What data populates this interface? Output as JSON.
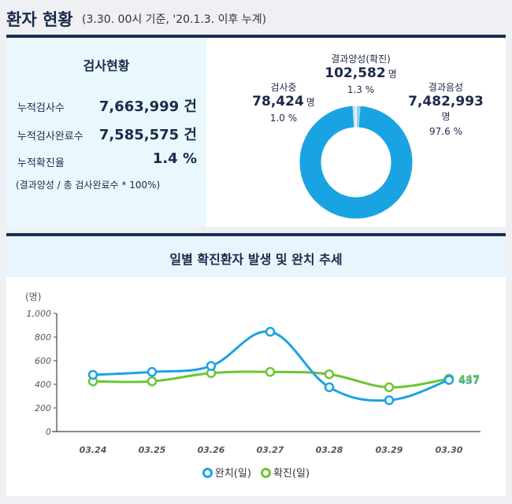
{
  "header": {
    "title": "환자 현황",
    "subtitle": "(3.30. 00시 기준, '20.1.3. 이후 누계)"
  },
  "summary": {
    "heading": "검사현황",
    "rows": [
      {
        "label": "누적검사수",
        "value": "7,663,999 건"
      },
      {
        "label": "누적검사완료수",
        "value": "7,585,575 건"
      },
      {
        "label": "누적확진율",
        "value": "1.4 %"
      }
    ],
    "note": "(결과양성 / 총 검사완료수 * 100%)"
  },
  "donut": {
    "colors": {
      "negative": "#1aa3e3",
      "pending": "#d4dbe2",
      "positive": "#8fd3f0"
    },
    "segments": [
      {
        "key": "positive",
        "name": "결과양성(확진)",
        "value": "102,582",
        "unit": "명",
        "pct": "1.3 %",
        "fraction": 0.013
      },
      {
        "key": "pending",
        "name": "검사중",
        "value": "78,424",
        "unit": "명",
        "pct": "1.0 %",
        "fraction": 0.01
      },
      {
        "key": "negative",
        "name": "결과음성",
        "value": "7,482,993",
        "unit": "명",
        "pct": "97.6 %",
        "fraction": 0.976
      }
    ]
  },
  "chart_title": "일별 확진환자 발생 및 완치 추세",
  "chart_data": {
    "type": "line",
    "ylabel": "(명)",
    "ylim": [
      0,
      1000
    ],
    "yticks": [
      "0",
      "200",
      "400",
      "600",
      "800",
      "1,000"
    ],
    "ytick_values": [
      0,
      200,
      400,
      600,
      800,
      1000
    ],
    "categories": [
      "03.24",
      "03.25",
      "03.26",
      "03.27",
      "03.28",
      "03.29",
      "03.30"
    ],
    "series": [
      {
        "name": "완치(일)",
        "color": "#1aa3e3",
        "values": [
          480,
          505,
          555,
          845,
          375,
          265,
          437
        ]
      },
      {
        "name": "확진(일)",
        "color": "#6cc531",
        "values": [
          425,
          425,
          495,
          505,
          485,
          375,
          447
        ]
      }
    ],
    "end_labels": [
      "437",
      "447"
    ],
    "grid": false,
    "legend": "bottom"
  }
}
